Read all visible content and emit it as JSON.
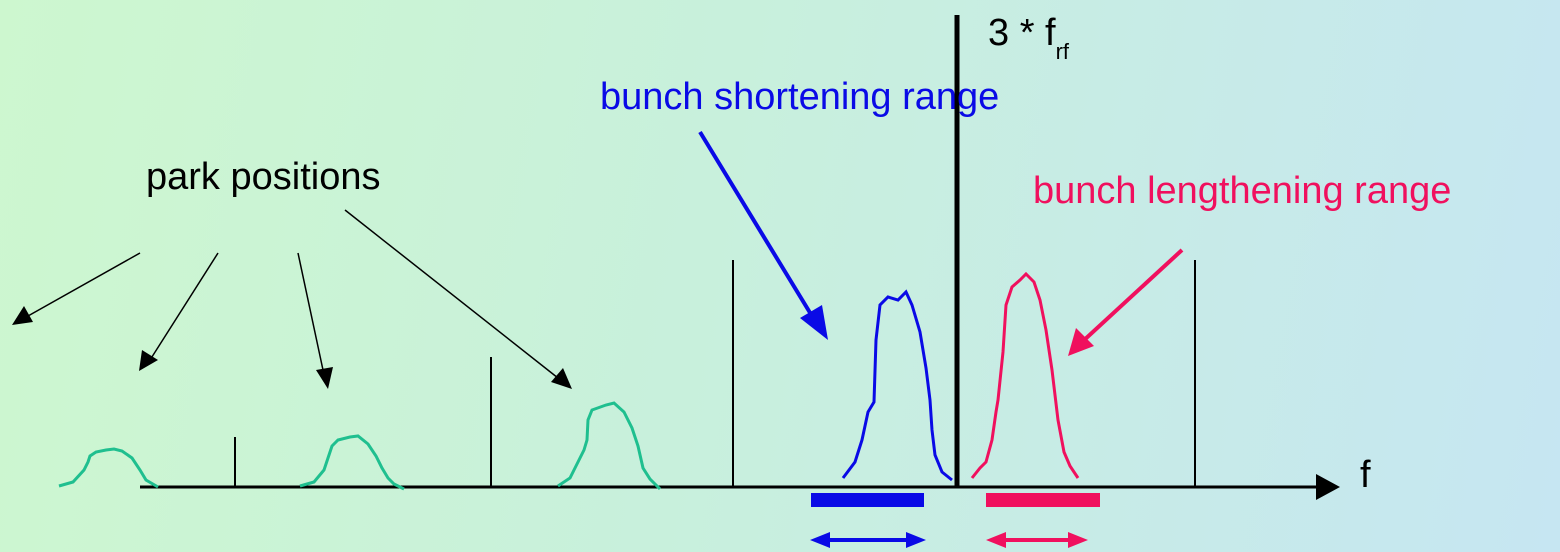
{
  "labels": {
    "park_positions": "park positions",
    "shortening": "bunch shortening range",
    "lengthening": "bunch lengthening range",
    "harmonic_prefix": "3 * f",
    "harmonic_sub": "rf",
    "axis": "f"
  },
  "colors": {
    "park_bump": "#1fbf8f",
    "shortening": "#0a0ae6",
    "lengthening": "#f0105e",
    "axis": "#000000",
    "background_left": "#cdf7cf",
    "background_right": "#c6e6f2"
  }
}
